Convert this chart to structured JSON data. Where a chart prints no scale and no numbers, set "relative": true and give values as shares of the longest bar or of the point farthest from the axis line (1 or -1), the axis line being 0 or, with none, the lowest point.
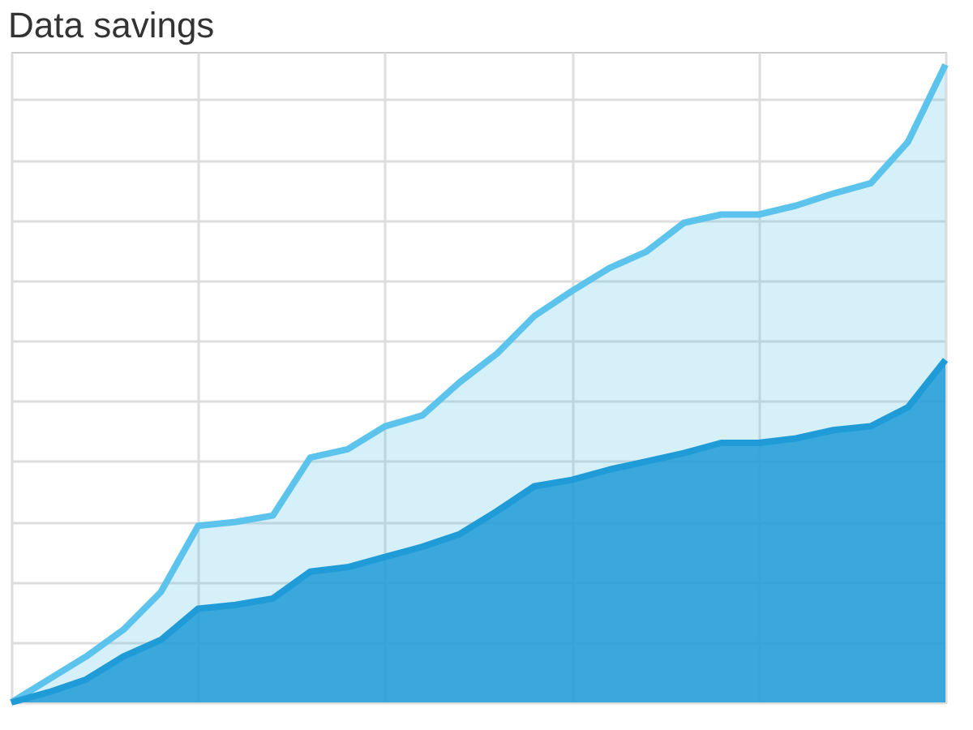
{
  "chart_data": {
    "type": "area",
    "title": "Data savings",
    "relative": true,
    "grid": true,
    "categories": [
      null,
      null,
      null,
      null,
      null,
      null,
      null,
      null,
      null,
      null,
      null,
      null,
      null,
      null,
      null,
      null,
      null,
      null,
      null,
      null,
      null,
      null,
      null,
      null,
      null,
      null
    ],
    "series": [
      {
        "color": "#5cc4ec",
        "values": [
          0,
          0.036,
          0.072,
          0.114,
          0.173,
          0.277,
          0.283,
          0.293,
          0.384,
          0.397,
          0.433,
          0.45,
          0.502,
          0.547,
          0.606,
          0.645,
          0.681,
          0.707,
          0.752,
          0.765,
          0.765,
          0.779,
          0.798,
          0.814,
          0.879,
          1.0
        ]
      },
      {
        "color": "#1f9bd7",
        "values": [
          0,
          0.016,
          0.036,
          0.072,
          0.098,
          0.147,
          0.153,
          0.163,
          0.205,
          0.212,
          0.228,
          0.244,
          0.264,
          0.3,
          0.339,
          0.349,
          0.365,
          0.378,
          0.391,
          0.407,
          0.407,
          0.414,
          0.427,
          0.433,
          0.463,
          0.537
        ]
      }
    ]
  }
}
